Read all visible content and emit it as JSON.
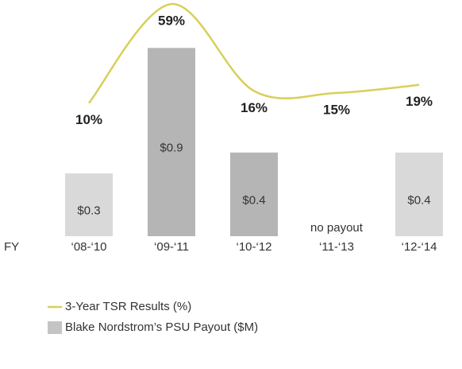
{
  "chart_data": {
    "type": "bar-line",
    "x_label": "FY",
    "categories": [
      "‘08-‘10",
      "‘09-‘11",
      "‘10-‘12",
      "‘11-‘13",
      "‘12-‘14"
    ],
    "series": [
      {
        "name": "3-Year TSR Results (%)",
        "type": "line",
        "axis": "y2",
        "color": "#d9cf5b",
        "values": [
          10,
          59,
          16,
          15,
          19
        ],
        "value_labels": [
          "10%",
          "59%",
          "16%",
          "15%",
          "19%"
        ]
      },
      {
        "name": "Blake Nordstrom’s PSU Payout ($M)",
        "type": "bar",
        "color": "#c4c4c4",
        "colors": [
          "#d9d9d9",
          "#b5b5b5",
          "#b5b5b5",
          "#d9d9d9",
          "#d9d9d9"
        ],
        "values": [
          0.3,
          0.9,
          0.4,
          null,
          0.4
        ],
        "value_labels": [
          "$0.3",
          "$0.9",
          "$0.4",
          "no payout",
          "$0.4"
        ]
      }
    ],
    "ylim": [
      0,
      1
    ],
    "y2lim": [
      0,
      61
    ],
    "grid": false
  }
}
